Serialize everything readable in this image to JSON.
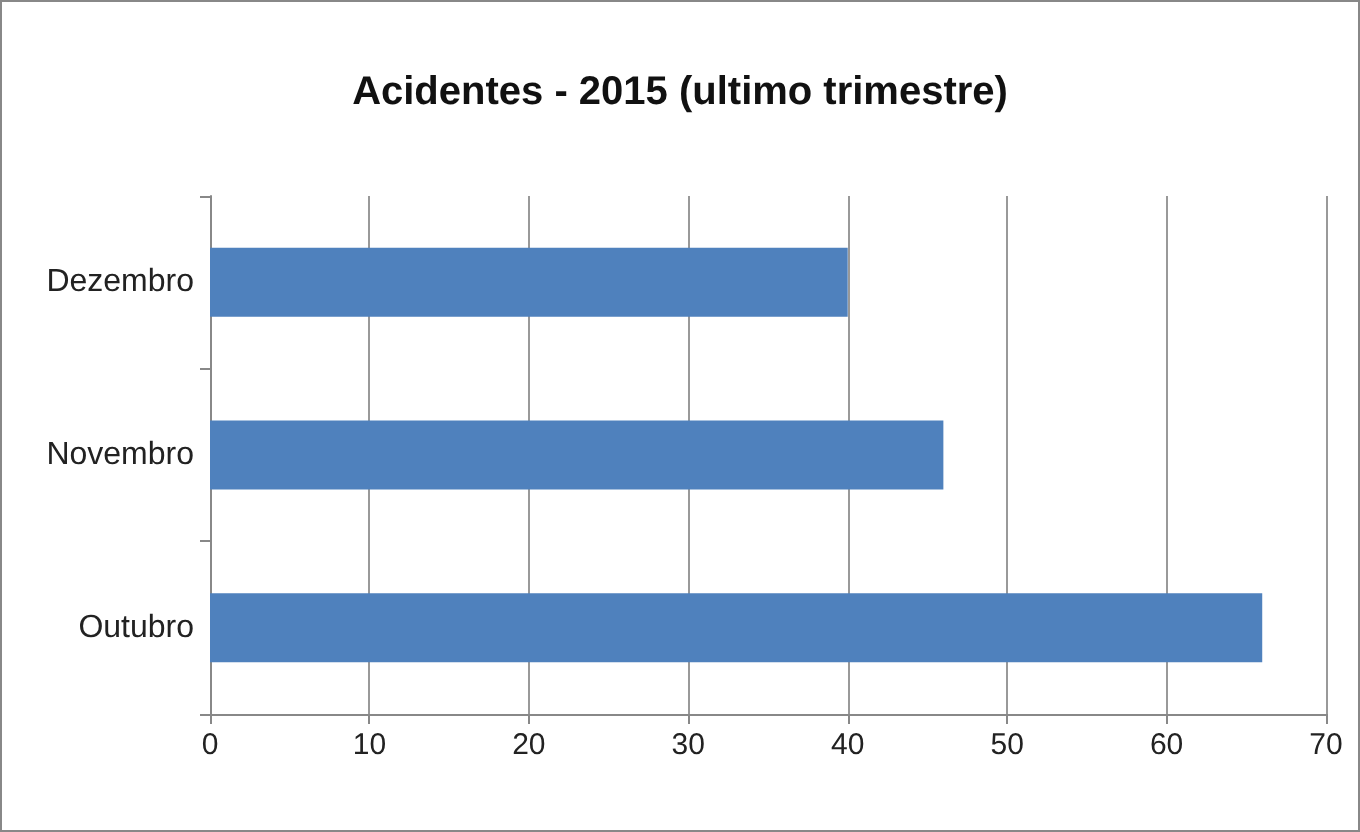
{
  "chart_data": {
    "type": "bar",
    "orientation": "horizontal",
    "title": "Acidentes - 2015 (ultimo trimestre)",
    "categories": [
      "Dezembro",
      "Novembro",
      "Outubro"
    ],
    "values": [
      40,
      46,
      66
    ],
    "color": "#4f81bd",
    "xlim": [
      0,
      70
    ],
    "xticks": [
      0,
      10,
      20,
      30,
      40,
      50,
      60,
      70
    ],
    "grid": "x"
  }
}
